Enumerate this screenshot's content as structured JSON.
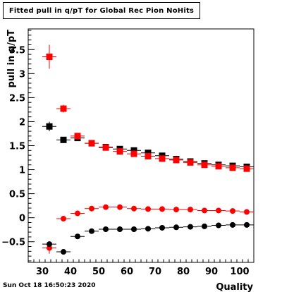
{
  "title": "Fitted pull in q/pT for Global Rec Pion NoHits",
  "timestamp": "Sun Oct 18 16:50:23 2020",
  "chart_data": {
    "type": "scatter",
    "xlabel": "Quality",
    "ylabel": "pull in q/pT",
    "xlim": [
      25,
      105
    ],
    "ylim": [
      -0.93,
      3.93
    ],
    "x_ticks": [
      30,
      40,
      50,
      60,
      70,
      80,
      90,
      100
    ],
    "y_ticks": [
      -0.5,
      0,
      0.5,
      1,
      1.5,
      2,
      2.5,
      3,
      3.5
    ],
    "x_tick_labels": [
      "30",
      "40",
      "50",
      "60",
      "70",
      "80",
      "90",
      "100"
    ],
    "y_tick_labels": [
      "−0.5",
      "0",
      "0.5",
      "1",
      "1.5",
      "2",
      "2.5",
      "3",
      "3.5"
    ],
    "grid": false,
    "x": [
      32.5,
      37.5,
      42.5,
      47.5,
      52.5,
      57.5,
      62.5,
      67.5,
      72.5,
      77.5,
      82.5,
      87.5,
      92.5,
      97.5,
      102.5
    ],
    "x_err": 2.5,
    "series": [
      {
        "marker": "square",
        "color": "#000000",
        "values": [
          1.9,
          1.62,
          1.66,
          1.55,
          1.47,
          1.43,
          1.4,
          1.35,
          1.29,
          1.22,
          1.17,
          1.13,
          1.1,
          1.08,
          1.06
        ],
        "errors": [
          0.1,
          0.06,
          0.05,
          0.04,
          0.03,
          0.03,
          0.03,
          0.03,
          0.03,
          0.03,
          0.03,
          0.03,
          0.03,
          0.03,
          0.03
        ]
      },
      {
        "marker": "square",
        "color": "#ff0000",
        "values": [
          3.35,
          2.27,
          1.7,
          1.55,
          1.46,
          1.38,
          1.33,
          1.28,
          1.23,
          1.2,
          1.15,
          1.1,
          1.07,
          1.04,
          1.02
        ],
        "errors": [
          0.25,
          0.08,
          0.06,
          0.05,
          0.04,
          0.03,
          0.03,
          0.03,
          0.03,
          0.03,
          0.03,
          0.03,
          0.03,
          0.03,
          0.03
        ]
      },
      {
        "marker": "circle",
        "color": "#ff0000",
        "values": [
          -0.63,
          -0.02,
          0.09,
          0.19,
          0.22,
          0.22,
          0.19,
          0.18,
          0.18,
          0.17,
          0.17,
          0.15,
          0.15,
          0.14,
          0.12
        ],
        "errors": [
          0.12,
          0.04,
          0.03,
          0.03,
          0.03,
          0.02,
          0.02,
          0.02,
          0.02,
          0.02,
          0.02,
          0.02,
          0.02,
          0.02,
          0.02
        ]
      },
      {
        "marker": "circle",
        "color": "#000000",
        "values": [
          -0.55,
          -0.71,
          -0.39,
          -0.28,
          -0.24,
          -0.24,
          -0.24,
          -0.23,
          -0.21,
          -0.2,
          -0.19,
          -0.18,
          -0.16,
          -0.15,
          -0.15
        ],
        "errors": [
          0.05,
          0.04,
          0.03,
          0.03,
          0.02,
          0.02,
          0.02,
          0.02,
          0.02,
          0.02,
          0.02,
          0.02,
          0.02,
          0.02,
          0.02
        ]
      }
    ]
  }
}
